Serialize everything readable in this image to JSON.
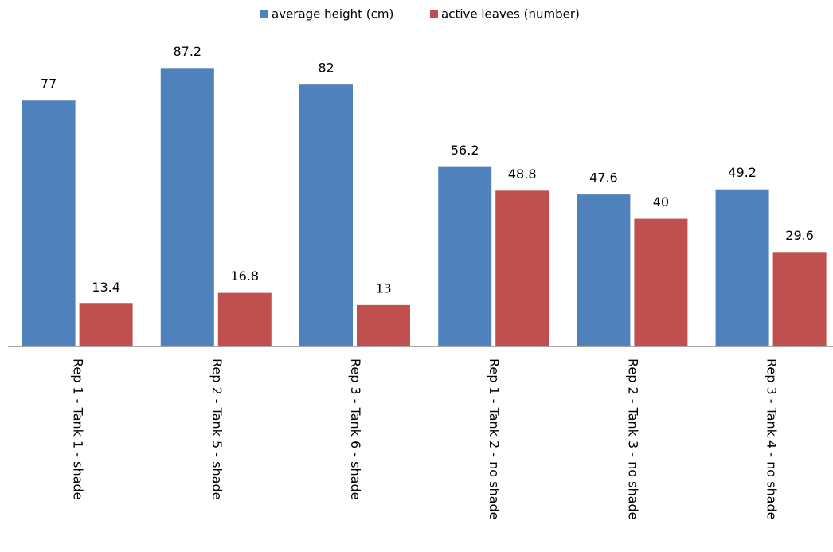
{
  "chart_data": {
    "type": "bar",
    "categories": [
      "Rep 1 - Tank 1 - shade",
      "Rep 2 - Tank 5 - shade",
      "Rep 3 - Tank 6 - shade",
      "Rep 1 - Tank 2 - no shade",
      "Rep 2 - Tank 3 - no shade",
      "Rep 3 - Tank 4 - no shade"
    ],
    "series": [
      {
        "name": "average height (cm)",
        "color": "#4f81bd",
        "values": [
          77,
          87.2,
          82,
          56.2,
          47.6,
          49.2
        ]
      },
      {
        "name": "active leaves (number)",
        "color": "#c0504d",
        "values": [
          13.4,
          16.8,
          13,
          48.8,
          40,
          29.6
        ]
      }
    ],
    "ylim": [
      0,
      100
    ],
    "legend": "top"
  }
}
